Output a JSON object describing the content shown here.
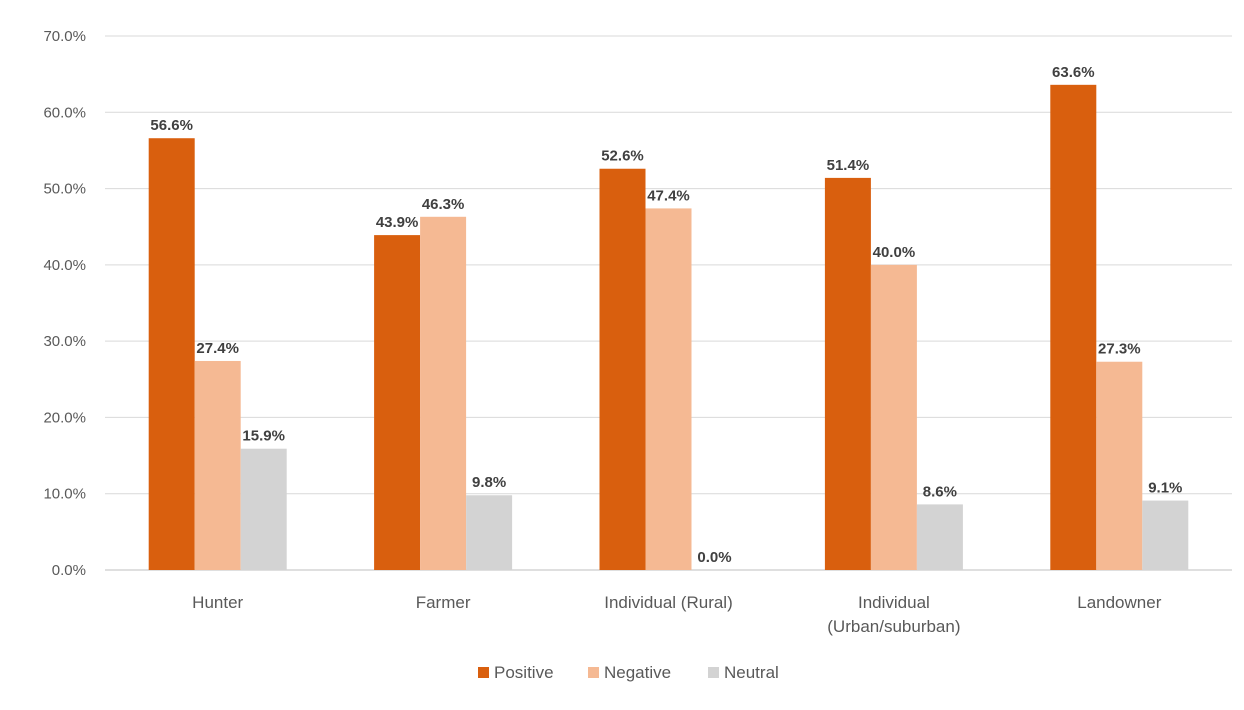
{
  "chart_data": {
    "type": "bar",
    "categories": [
      [
        "Hunter"
      ],
      [
        "Farmer"
      ],
      [
        "Individual (Rural)"
      ],
      [
        "Individual",
        "(Urban/suburban)"
      ],
      [
        "Landowner"
      ]
    ],
    "series": [
      {
        "name": "Positive",
        "color": "#D95F0E",
        "values": [
          56.6,
          43.9,
          52.6,
          51.4,
          63.6
        ],
        "labels": [
          "56.6%",
          "43.9%",
          "52.6%",
          "51.4%",
          "63.6%"
        ]
      },
      {
        "name": "Negative",
        "color": "#F5B993",
        "values": [
          27.4,
          46.3,
          47.4,
          40.0,
          27.3
        ],
        "labels": [
          "27.4%",
          "46.3%",
          "47.4%",
          "40.0%",
          "27.3%"
        ]
      },
      {
        "name": "Neutral",
        "color": "#D3D3D3",
        "values": [
          15.9,
          9.8,
          0.0,
          8.6,
          9.1
        ],
        "labels": [
          "15.9%",
          "9.8%",
          "0.0%",
          "8.6%",
          "9.1%"
        ]
      }
    ],
    "y_ticks": [
      "0.0%",
      "10.0%",
      "20.0%",
      "30.0%",
      "40.0%",
      "50.0%",
      "60.0%",
      "70.0%"
    ],
    "ylim": [
      0,
      70
    ],
    "grid": true,
    "legend_position": "bottom"
  }
}
